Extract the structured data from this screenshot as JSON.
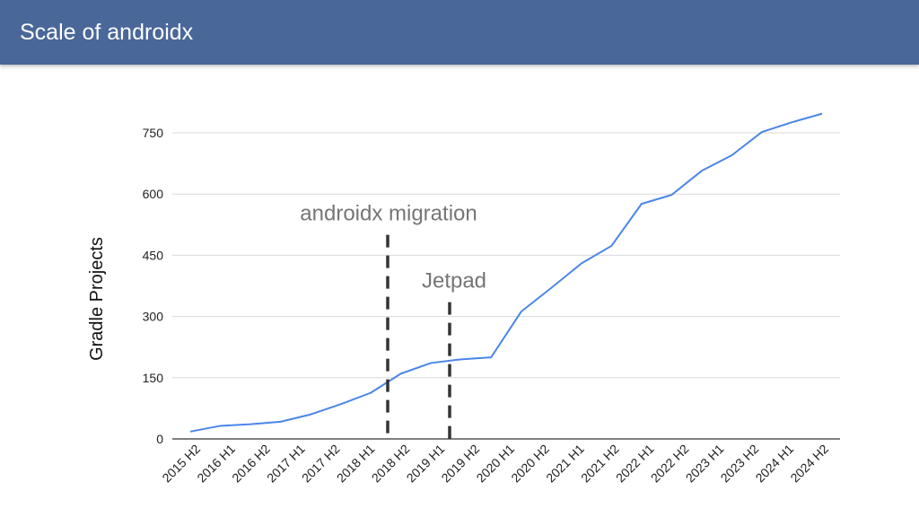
{
  "slide": {
    "title": "Scale of androidx",
    "header_color": "#4a6799"
  },
  "chart_data": {
    "type": "line",
    "title": "",
    "xlabel": "",
    "ylabel": "Gradle Projects",
    "ylim": [
      0,
      800
    ],
    "yticks": [
      0,
      150,
      300,
      450,
      600,
      750
    ],
    "grid": true,
    "x": [
      "2015 H2",
      "2016 H1",
      "2016 H2",
      "2017 H1",
      "2017 H2",
      "2018 H1",
      "2018 H2",
      "2019 H1",
      "2019 H2",
      "2020 H1",
      "2020 H2",
      "2021 H1",
      "2021 H2",
      "2022 H1",
      "2022 H2",
      "2023 H1",
      "2023 H2",
      "2024 H1",
      "2024 H2"
    ],
    "series": [
      {
        "color": "#4a86e8",
        "points": [
          {
            "x": "2015 H2",
            "y": 18
          },
          {
            "x": "2016 H1",
            "y": 32
          },
          {
            "x": "2016 H2",
            "y": 36
          },
          {
            "x": "2017 H1",
            "y": 42
          },
          {
            "x": "2017 H2",
            "y": 60
          },
          {
            "x": "2018 H1",
            "y": 85
          },
          {
            "x": "2018 H2",
            "y": 113
          },
          {
            "x": "2019 H1",
            "y": 160
          },
          {
            "x": "2019 H2",
            "y": 186
          },
          {
            "x": "2020 H1",
            "y": 195
          },
          {
            "x": "2020 H2",
            "y": 200
          },
          {
            "x": "2021 H1",
            "y": 312
          },
          {
            "x": "2021 H2",
            "y": 370
          },
          {
            "x": "2022 H1",
            "y": 430
          },
          {
            "x": "2022 H2",
            "y": 473
          },
          {
            "x": "2023 H1",
            "y": 576
          },
          {
            "x": "2023 H2",
            "y": 598
          },
          {
            "x": "2024 H1",
            "y": 657
          },
          {
            "x": "2024 H2",
            "y": 695
          },
          {
            "x": "2024 H2",
            "y": 752
          },
          {
            "x": "2024 H2",
            "y": 776
          },
          {
            "x": "2024 H2",
            "y": 797
          }
        ]
      }
    ],
    "annotations": [
      {
        "label": "androidx migration",
        "x": "2018 H2",
        "y_top": 500,
        "line_color": "#333333",
        "text_color": "#757575"
      },
      {
        "label": "Jetpad",
        "x": "2019 H1",
        "y_top": 335,
        "line_color": "#333333",
        "text_color": "#757575"
      }
    ],
    "line_color": "#4a86e8",
    "grid_color": "#d9d9d9",
    "axis_color": "#333333"
  }
}
